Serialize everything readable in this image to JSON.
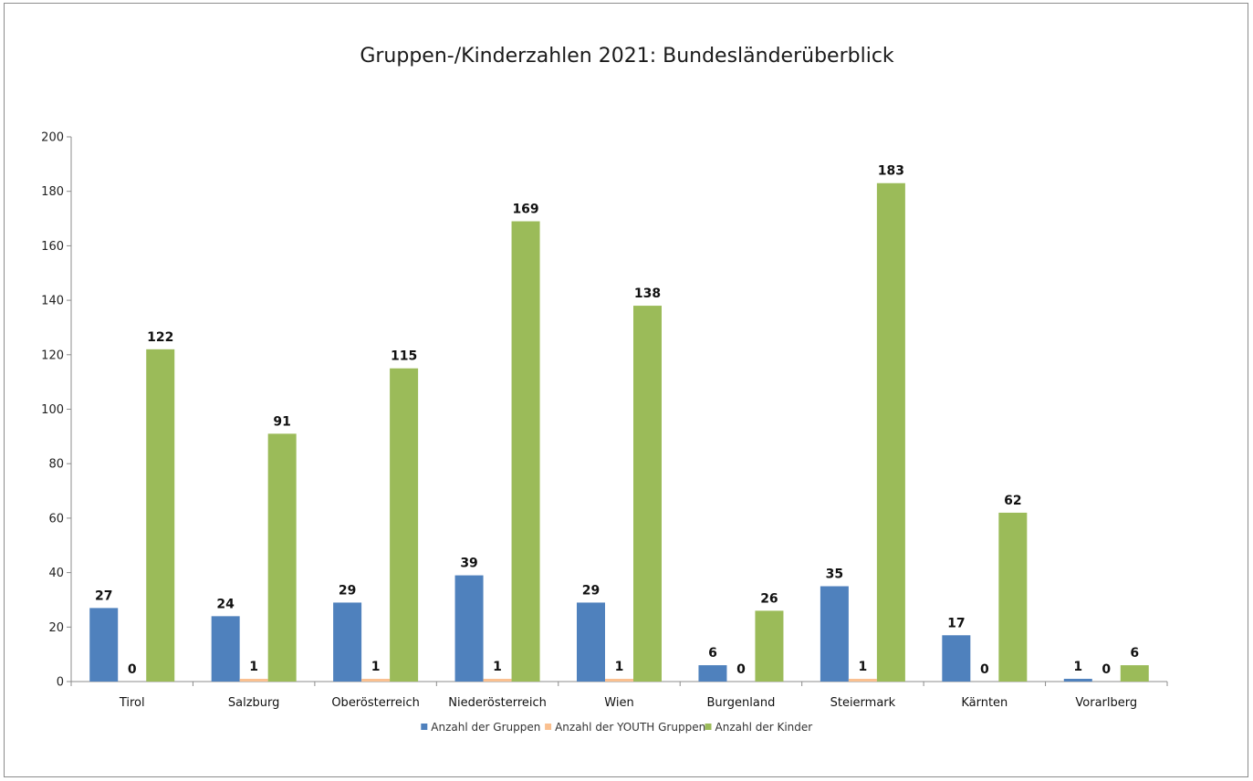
{
  "chart_data": {
    "type": "bar",
    "title": "Gruppen-/Kinderzahlen 2021: Bundesländerüberblick",
    "xlabel": "",
    "ylabel": "",
    "ylim": [
      0,
      200
    ],
    "yticks": [
      0,
      20,
      40,
      60,
      80,
      100,
      120,
      140,
      160,
      180,
      200
    ],
    "grid": false,
    "legend_position": "bottom",
    "categories": [
      "Tirol",
      "Salzburg",
      "Oberösterreich",
      "Niederösterreich",
      "Wien",
      "Burgenland",
      "Steiermark",
      "Kärnten",
      "Vorarlberg"
    ],
    "series": [
      {
        "name": "Anzahl der Gruppen",
        "color": "#4f81bd",
        "values": [
          27,
          24,
          29,
          39,
          29,
          6,
          35,
          17,
          1
        ]
      },
      {
        "name": "Anzahl der YOUTH Gruppen",
        "color": "#fac090",
        "values": [
          0,
          1,
          1,
          1,
          1,
          0,
          1,
          0,
          0
        ]
      },
      {
        "name": "Anzahl der Kinder",
        "color": "#9bbb59",
        "values": [
          122,
          91,
          115,
          169,
          138,
          26,
          183,
          62,
          6
        ]
      }
    ]
  }
}
